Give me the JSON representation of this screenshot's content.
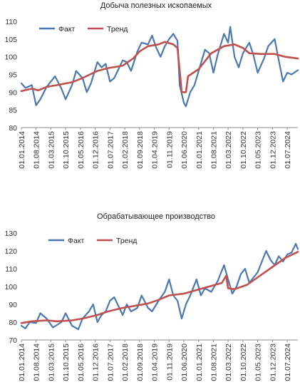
{
  "colors": {
    "fact": "#4a78b0",
    "trend": "#c0504d",
    "axis": "#888888",
    "text": "#222222"
  },
  "chart_data": [
    {
      "type": "line",
      "title": "Добыча полезных ископаемых",
      "ylim": [
        80,
        110
      ],
      "yticks": [
        80,
        85,
        90,
        95,
        100,
        105,
        110
      ],
      "xlim": [
        "2014-01-01",
        "2024-12-01"
      ],
      "xtick_labels": [
        "01.01.2014",
        "01.08.2014",
        "01.03.2015",
        "01.10.2015",
        "01.05.2016",
        "01.12.2016",
        "01.07.2017",
        "01.02.2018",
        "01.09.2018",
        "01.04.2019",
        "01.11.2019",
        "01.06.2020",
        "01.01.2021",
        "01.08.2021",
        "01.03.2022",
        "01.10.2022",
        "01.05.2023",
        "01.12.2023",
        "01.07.2024"
      ],
      "grid": false,
      "legend_position": "top-left",
      "series": [
        {
          "name": "Факт",
          "points": [
            [
              "2014-01-01",
              92.5
            ],
            [
              "2014-03-01",
              91.2
            ],
            [
              "2014-06-01",
              92.0
            ],
            [
              "2014-08-01",
              86.3
            ],
            [
              "2014-10-01",
              88.0
            ],
            [
              "2015-01-01",
              91.5
            ],
            [
              "2015-03-01",
              93.0
            ],
            [
              "2015-05-01",
              94.5
            ],
            [
              "2015-08-01",
              91.0
            ],
            [
              "2015-10-01",
              88.0
            ],
            [
              "2016-01-01",
              92.0
            ],
            [
              "2016-03-01",
              96.0
            ],
            [
              "2016-06-01",
              94.0
            ],
            [
              "2016-08-01",
              90.0
            ],
            [
              "2016-10-01",
              92.5
            ],
            [
              "2017-01-01",
              98.5
            ],
            [
              "2017-03-01",
              97.0
            ],
            [
              "2017-05-01",
              98.0
            ],
            [
              "2017-07-01",
              93.0
            ],
            [
              "2017-09-01",
              94.0
            ],
            [
              "2018-01-01",
              99.0
            ],
            [
              "2018-03-01",
              98.5
            ],
            [
              "2018-05-01",
              96.0
            ],
            [
              "2018-08-01",
              101.5
            ],
            [
              "2018-10-01",
              104.0
            ],
            [
              "2019-01-01",
              103.5
            ],
            [
              "2019-03-01",
              106.0
            ],
            [
              "2019-05-01",
              102.5
            ],
            [
              "2019-07-01",
              100.0
            ],
            [
              "2019-09-01",
              103.0
            ],
            [
              "2019-11-01",
              105.0
            ],
            [
              "2020-01-01",
              106.5
            ],
            [
              "2020-03-01",
              104.5
            ],
            [
              "2020-04-01",
              92.0
            ],
            [
              "2020-06-01",
              87.0
            ],
            [
              "2020-07-01",
              86.0
            ],
            [
              "2020-09-01",
              90.0
            ],
            [
              "2020-11-01",
              92.0
            ],
            [
              "2021-01-01",
              96.0
            ],
            [
              "2021-04-01",
              102.0
            ],
            [
              "2021-06-01",
              101.0
            ],
            [
              "2021-08-01",
              95.5
            ],
            [
              "2021-10-01",
              100.5
            ],
            [
              "2022-01-01",
              106.5
            ],
            [
              "2022-03-01",
              104.0
            ],
            [
              "2022-04-01",
              108.5
            ],
            [
              "2022-06-01",
              100.0
            ],
            [
              "2022-08-01",
              97.0
            ],
            [
              "2022-10-01",
              101.0
            ],
            [
              "2023-01-01",
              104.0
            ],
            [
              "2023-03-01",
              100.5
            ],
            [
              "2023-05-01",
              95.5
            ],
            [
              "2023-08-01",
              99.5
            ],
            [
              "2023-10-01",
              103.0
            ],
            [
              "2024-01-01",
              105.0
            ],
            [
              "2024-03-01",
              99.0
            ],
            [
              "2024-05-01",
              93.0
            ],
            [
              "2024-07-01",
              95.5
            ],
            [
              "2024-09-01",
              95.0
            ],
            [
              "2024-12-01",
              96.2
            ]
          ]
        },
        {
          "name": "Тренд",
          "points": [
            [
              "2014-01-01",
              90.3
            ],
            [
              "2014-06-01",
              91.0
            ],
            [
              "2014-09-01",
              90.5
            ],
            [
              "2015-01-01",
              91.5
            ],
            [
              "2015-06-01",
              92.0
            ],
            [
              "2016-01-01",
              92.8
            ],
            [
              "2016-06-01",
              94.0
            ],
            [
              "2017-01-01",
              96.0
            ],
            [
              "2017-06-01",
              96.8
            ],
            [
              "2018-01-01",
              97.5
            ],
            [
              "2018-06-01",
              99.5
            ],
            [
              "2018-09-01",
              101.5
            ],
            [
              "2019-01-01",
              103.0
            ],
            [
              "2019-06-01",
              103.5
            ],
            [
              "2019-09-01",
              104.2
            ],
            [
              "2020-01-01",
              103.5
            ],
            [
              "2020-03-01",
              102.5
            ],
            [
              "2020-05-01",
              90.0
            ],
            [
              "2020-07-01",
              90.0
            ],
            [
              "2020-08-01",
              94.5
            ],
            [
              "2021-01-01",
              96.5
            ],
            [
              "2021-07-01",
              101.0
            ],
            [
              "2022-01-01",
              103.0
            ],
            [
              "2022-06-01",
              103.5
            ],
            [
              "2022-10-01",
              102.5
            ],
            [
              "2023-01-01",
              101.0
            ],
            [
              "2023-06-01",
              100.8
            ],
            [
              "2024-01-01",
              100.8
            ],
            [
              "2024-06-01",
              100.0
            ],
            [
              "2024-12-01",
              99.5
            ]
          ]
        }
      ]
    },
    {
      "type": "line",
      "title": "Обрабатывающее производство",
      "ylim": [
        70,
        130
      ],
      "yticks": [
        70,
        80,
        90,
        100,
        110,
        120,
        130
      ],
      "xlim": [
        "2014-01-01",
        "2024-12-01"
      ],
      "xtick_labels": [
        "01.01.2014",
        "01.08.2014",
        "01.03.2015",
        "01.10.2015",
        "01.05.2016",
        "01.12.2016",
        "01.07.2017",
        "01.02.2018",
        "01.09.2018",
        "01.04.2019",
        "01.11.2019",
        "01.06.2020",
        "01.01.2021",
        "01.08.2021",
        "01.03.2022",
        "01.10.2022",
        "01.05.2023",
        "01.12.2023",
        "01.07.2024"
      ],
      "grid": false,
      "legend_position": "top-center",
      "series": [
        {
          "name": "Факт",
          "points": [
            [
              "2014-01-01",
              78.0
            ],
            [
              "2014-03-01",
              76.5
            ],
            [
              "2014-05-01",
              80.0
            ],
            [
              "2014-08-01",
              79.5
            ],
            [
              "2014-10-01",
              85.0
            ],
            [
              "2015-01-01",
              82.0
            ],
            [
              "2015-04-01",
              77.0
            ],
            [
              "2015-08-01",
              80.0
            ],
            [
              "2015-10-01",
              85.0
            ],
            [
              "2016-01-01",
              78.0
            ],
            [
              "2016-04-01",
              76.0
            ],
            [
              "2016-06-01",
              82.0
            ],
            [
              "2016-09-01",
              86.0
            ],
            [
              "2016-11-01",
              90.0
            ],
            [
              "2017-01-01",
              80.0
            ],
            [
              "2017-03-01",
              84.0
            ],
            [
              "2017-05-01",
              86.0
            ],
            [
              "2017-07-01",
              92.0
            ],
            [
              "2017-09-01",
              94.0
            ],
            [
              "2018-01-01",
              84.0
            ],
            [
              "2018-03-01",
              90.0
            ],
            [
              "2018-05-01",
              86.0
            ],
            [
              "2018-08-01",
              88.0
            ],
            [
              "2018-10-01",
              95.0
            ],
            [
              "2019-01-01",
              88.0
            ],
            [
              "2019-03-01",
              86.0
            ],
            [
              "2019-06-01",
              92.0
            ],
            [
              "2019-09-01",
              97.0
            ],
            [
              "2019-11-01",
              104.0
            ],
            [
              "2020-01-01",
              95.0
            ],
            [
              "2020-03-01",
              92.0
            ],
            [
              "2020-05-01",
              82.0
            ],
            [
              "2020-07-01",
              90.0
            ],
            [
              "2020-09-01",
              95.0
            ],
            [
              "2020-12-01",
              104.0
            ],
            [
              "2021-02-01",
              95.0
            ],
            [
              "2021-04-01",
              99.0
            ],
            [
              "2021-07-01",
              97.0
            ],
            [
              "2021-10-01",
              103.0
            ],
            [
              "2022-01-01",
              112.0
            ],
            [
              "2022-03-01",
              104.0
            ],
            [
              "2022-05-01",
              96.0
            ],
            [
              "2022-07-01",
              100.0
            ],
            [
              "2022-09-01",
              107.0
            ],
            [
              "2022-11-01",
              110.0
            ],
            [
              "2023-01-01",
              102.0
            ],
            [
              "2023-03-01",
              105.0
            ],
            [
              "2023-05-01",
              108.0
            ],
            [
              "2023-07-01",
              114.0
            ],
            [
              "2023-09-01",
              120.0
            ],
            [
              "2023-11-01",
              115.0
            ],
            [
              "2024-01-01",
              112.0
            ],
            [
              "2024-03-01",
              117.0
            ],
            [
              "2024-05-01",
              114.0
            ],
            [
              "2024-07-01",
              118.0
            ],
            [
              "2024-09-01",
              119.0
            ],
            [
              "2024-11-01",
              124.0
            ],
            [
              "2024-12-01",
              121.0
            ]
          ]
        },
        {
          "name": "Тренд",
          "points": [
            [
              "2014-01-01",
              79.5
            ],
            [
              "2014-06-01",
              80.5
            ],
            [
              "2015-01-01",
              81.0
            ],
            [
              "2015-06-01",
              80.5
            ],
            [
              "2016-01-01",
              81.0
            ],
            [
              "2016-06-01",
              82.0
            ],
            [
              "2017-01-01",
              84.0
            ],
            [
              "2017-06-01",
              86.0
            ],
            [
              "2018-01-01",
              88.0
            ],
            [
              "2018-06-01",
              89.0
            ],
            [
              "2019-01-01",
              90.5
            ],
            [
              "2019-06-01",
              92.5
            ],
            [
              "2019-11-01",
              95.0
            ],
            [
              "2020-06-01",
              96.0
            ],
            [
              "2020-12-01",
              98.0
            ],
            [
              "2021-06-01",
              100.0
            ],
            [
              "2021-12-01",
              102.0
            ],
            [
              "2022-02-01",
              106.0
            ],
            [
              "2022-03-01",
              99.0
            ],
            [
              "2022-06-01",
              98.5
            ],
            [
              "2022-12-01",
              101.0
            ],
            [
              "2023-06-01",
              106.0
            ],
            [
              "2023-12-01",
              111.0
            ],
            [
              "2024-06-01",
              116.0
            ],
            [
              "2024-12-01",
              119.5
            ]
          ]
        }
      ]
    }
  ]
}
